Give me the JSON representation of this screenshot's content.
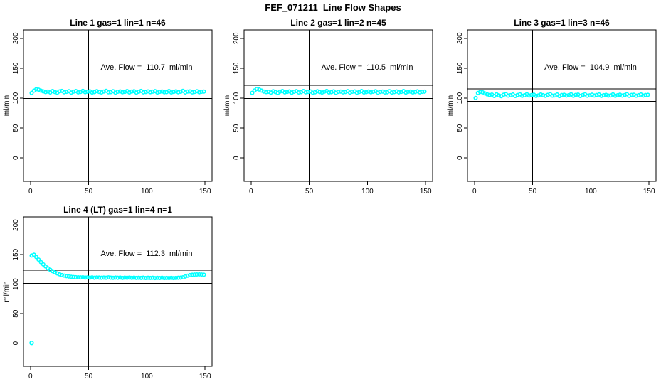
{
  "page_title": "FEF_071211  Line Flow Shapes",
  "colors": {
    "point_color": "#00FFFF",
    "axis_color": "#000000",
    "background": "#FFFFFF"
  },
  "axes": {
    "ylabel": "ml/min",
    "xlabel": "",
    "x_ticks": [
      0,
      50,
      100,
      150
    ],
    "y_ticks": [
      0,
      50,
      100,
      150,
      200
    ],
    "x_range": [
      -6,
      156
    ],
    "y_range": [
      -39,
      214
    ],
    "grid": "off"
  },
  "chart_data": [
    {
      "type": "scatter",
      "title": "Line 1 gas=1 lin=1 n=46",
      "annotation": "Ave. Flow =  110.7  ml/min",
      "ave_flow_ml_min": 110.7,
      "ref_line_x": 50,
      "ref_lines_y": [
        99.6,
        121.8
      ],
      "x_start": 1,
      "x_step": 2,
      "y": [
        108.6,
        112.4,
        114.8,
        114.1,
        112.5,
        111.2,
        110.1,
        110.9,
        109.4,
        111.8,
        110.2,
        109.0,
        111.2,
        112.0,
        109.8,
        110.5,
        111.5,
        109.2,
        110.8,
        111.9,
        109.6,
        110.3,
        112.1,
        109.9,
        110.6,
        111.4,
        109.3,
        110.0,
        111.7,
        110.4,
        109.5,
        111.0,
        112.2,
        109.7,
        110.1,
        111.6,
        109.1,
        110.7,
        111.2,
        109.8,
        110.4,
        111.9,
        109.4,
        110.9,
        111.5,
        109.2,
        110.6,
        112.0,
        109.6,
        110.2,
        111.3,
        109.9,
        110.8,
        111.7,
        109.3,
        110.5,
        111.1,
        109.7,
        110.0,
        111.8,
        109.5,
        110.3,
        111.4,
        109.8,
        110.6,
        112.1,
        109.4,
        110.9,
        111.2,
        109.6,
        110.4,
        111.6,
        109.8,
        110.7,
        111.0
      ],
      "outliers": []
    },
    {
      "type": "scatter",
      "title": "Line 2 gas=1 lin=2 n=45",
      "annotation": "Ave. Flow =  110.5  ml/min",
      "ave_flow_ml_min": 110.5,
      "ref_line_x": 50,
      "ref_lines_y": [
        99.5,
        121.6
      ],
      "x_start": 1,
      "x_step": 2,
      "y": [
        108.8,
        112.8,
        115.3,
        114.4,
        112.6,
        111.0,
        110.0,
        110.7,
        109.2,
        111.6,
        110.0,
        108.8,
        111.0,
        111.8,
        109.6,
        110.3,
        111.3,
        109.0,
        110.6,
        111.7,
        109.4,
        110.1,
        111.9,
        109.7,
        110.4,
        111.2,
        109.1,
        109.8,
        111.5,
        110.2,
        109.3,
        110.8,
        112.0,
        109.5,
        109.9,
        111.4,
        108.9,
        110.5,
        111.0,
        109.6,
        110.2,
        111.7,
        109.2,
        110.7,
        111.3,
        109.0,
        110.4,
        111.8,
        109.4,
        110.0,
        111.1,
        109.7,
        110.6,
        111.5,
        109.1,
        110.3,
        110.9,
        109.5,
        109.8,
        111.6,
        109.3,
        110.1,
        111.2,
        109.6,
        110.4,
        111.9,
        109.2,
        110.7,
        111.0,
        109.4,
        110.2,
        111.4,
        109.6,
        110.5,
        110.8
      ],
      "outliers": []
    },
    {
      "type": "scatter",
      "title": "Line 3 gas=1 lin=3 n=46",
      "annotation": "Ave. Flow =  104.9  ml/min",
      "ave_flow_ml_min": 104.9,
      "ref_line_x": 50,
      "ref_lines_y": [
        94.4,
        115.4
      ],
      "x_start": 1,
      "x_step": 2,
      "y": [
        100.2,
        108.6,
        110.4,
        109.6,
        107.8,
        106.2,
        105.2,
        105.9,
        103.6,
        106.4,
        104.6,
        103.2,
        105.6,
        106.6,
        104.2,
        104.9,
        106.0,
        103.5,
        105.2,
        106.3,
        103.9,
        104.7,
        106.5,
        104.3,
        105.0,
        105.8,
        103.7,
        104.4,
        106.1,
        104.8,
        103.8,
        105.4,
        106.6,
        104.1,
        104.5,
        106.0,
        103.4,
        105.1,
        105.6,
        104.2,
        104.8,
        106.3,
        103.8,
        105.3,
        105.9,
        103.6,
        105.0,
        106.4,
        104.0,
        104.6,
        105.7,
        104.3,
        105.2,
        106.1,
        103.7,
        104.9,
        105.5,
        104.1,
        104.4,
        106.2,
        103.9,
        104.7,
        105.8,
        104.2,
        105.0,
        106.5,
        103.8,
        105.3,
        105.6,
        104.0,
        104.8,
        106.0,
        104.2,
        105.1,
        105.4
      ],
      "outliers": []
    },
    {
      "type": "scatter",
      "title": "Line 4 (LT) gas=1 lin=4 n=1",
      "annotation": "Ave. Flow =  112.3  ml/min",
      "ave_flow_ml_min": 112.3,
      "ref_line_x": 50,
      "ref_lines_y": [
        101.1,
        123.5
      ],
      "x_start": 1,
      "x_step": 2,
      "y": [
        148.5,
        149.8,
        146.0,
        141.5,
        137.3,
        133.5,
        130.0,
        127.0,
        124.3,
        122.0,
        120.0,
        118.2,
        116.7,
        115.4,
        114.4,
        113.6,
        113.0,
        112.5,
        112.1,
        111.8,
        111.6,
        111.4,
        111.6,
        111.2,
        111.5,
        111.0,
        111.4,
        110.9,
        111.3,
        111.1,
        110.8,
        111.2,
        110.9,
        111.4,
        111.0,
        110.7,
        111.2,
        110.8,
        111.1,
        110.6,
        111.0,
        110.8,
        111.2,
        110.7,
        111.0,
        110.5,
        110.9,
        110.6,
        111.0,
        110.4,
        110.8,
        110.5,
        110.9,
        110.3,
        110.7,
        110.4,
        110.8,
        110.2,
        110.6,
        110.4,
        110.7,
        110.3,
        110.6,
        110.8,
        111.0,
        111.6,
        113.0,
        114.3,
        115.3,
        115.9,
        116.2,
        116.4,
        116.5,
        116.3,
        116.0
      ],
      "outliers": [
        [
          1,
          0.5
        ]
      ]
    }
  ]
}
